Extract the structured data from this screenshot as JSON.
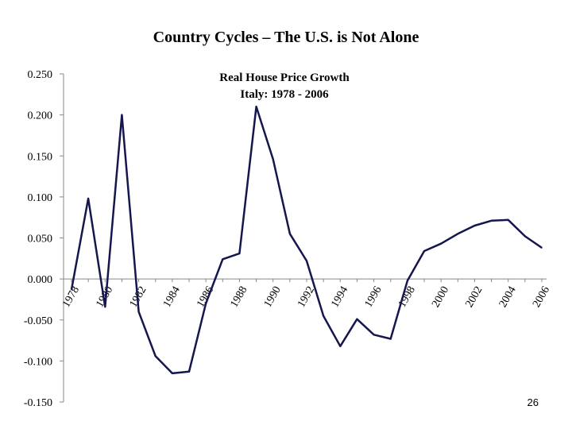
{
  "slide": {
    "title": "Country Cycles – The U.S. is Not Alone",
    "page_number": "26"
  },
  "chart_data": {
    "type": "line",
    "title_lines": [
      "Real House Price Growth",
      "Italy:  1978 - 2006"
    ],
    "xlabel": "",
    "ylabel": "",
    "ylim": [
      -0.15,
      0.25
    ],
    "yticks": [
      0.25,
      0.2,
      0.15,
      0.1,
      0.05,
      0.0,
      -0.05,
      -0.1,
      -0.15
    ],
    "ytick_labels": [
      "0.250",
      "0.200",
      "0.150",
      "0.100",
      "0.050",
      "0.000",
      "-0.050",
      "-0.100",
      "-0.150"
    ],
    "xlim": [
      1978,
      2006
    ],
    "xticks": [
      1978,
      1980,
      1982,
      1984,
      1986,
      1988,
      1990,
      1992,
      1994,
      1996,
      1998,
      2000,
      2002,
      2004,
      2006
    ],
    "xtick_labels": [
      "1978",
      "1980",
      "1982",
      "1984",
      "1986",
      "1988",
      "1990",
      "1992",
      "1994",
      "1996",
      "1998",
      "2000",
      "2002",
      "2004",
      "2006"
    ],
    "grid": false,
    "line_color": "#16164e",
    "x": [
      1978,
      1979,
      1980,
      1981,
      1982,
      1983,
      1984,
      1985,
      1986,
      1987,
      1988,
      1989,
      1990,
      1991,
      1992,
      1993,
      1994,
      1995,
      1996,
      1997,
      1998,
      1999,
      2000,
      2001,
      2002,
      2003,
      2004,
      2005,
      2006
    ],
    "series": [
      {
        "values": [
          -0.013,
          0.098,
          -0.034,
          0.2,
          -0.04,
          -0.094,
          -0.115,
          -0.113,
          -0.03,
          0.024,
          0.031,
          0.21,
          0.146,
          0.055,
          0.022,
          -0.045,
          -0.082,
          -0.049,
          -0.068,
          -0.073,
          -0.002,
          0.034,
          0.043,
          0.055,
          0.065,
          0.071,
          0.072,
          0.052,
          0.038
        ]
      }
    ]
  }
}
